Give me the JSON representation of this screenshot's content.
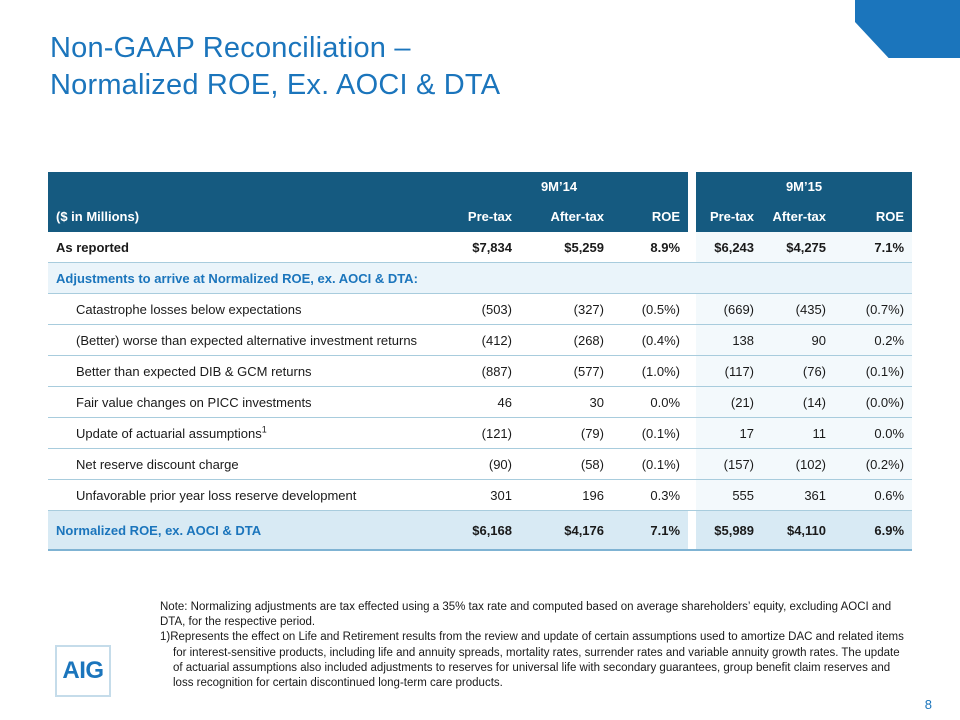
{
  "slide": {
    "title_line1": "Non-GAAP Reconciliation –",
    "title_line2": "Normalized ROE, Ex. AOCI & DTA",
    "page_number": "8",
    "logo": "AIG"
  },
  "table": {
    "period_headers": [
      "9M’14",
      "9M’15"
    ],
    "col_label": "($ in Millions)",
    "col_headers": [
      "Pre-tax",
      "After-tax",
      "ROE",
      "Pre-tax",
      "After-tax",
      "ROE"
    ],
    "as_reported": {
      "label": "As reported",
      "values": [
        "$7,834",
        "$5,259",
        "8.9%",
        "$6,243",
        "$4,275",
        "7.1%"
      ]
    },
    "section_header": "Adjustments to arrive at Normalized ROE, ex. AOCI & DTA:",
    "rows": [
      {
        "label": "Catastrophe losses below expectations",
        "values": [
          "(503)",
          "(327)",
          "(0.5%)",
          "(669)",
          "(435)",
          "(0.7%)"
        ]
      },
      {
        "label": "(Better) worse than expected alternative investment returns",
        "values": [
          "(412)",
          "(268)",
          "(0.4%)",
          "138",
          "90",
          "0.2%"
        ]
      },
      {
        "label": "Better than expected DIB & GCM returns",
        "values": [
          "(887)",
          "(577)",
          "(1.0%)",
          "(117)",
          "(76)",
          "(0.1%)"
        ]
      },
      {
        "label": "Fair value changes on PICC investments",
        "values": [
          "46",
          "30",
          "0.0%",
          "(21)",
          "(14)",
          "(0.0%)"
        ]
      },
      {
        "label": "Update of actuarial assumptions",
        "sup": "1",
        "values": [
          "(121)",
          "(79)",
          "(0.1%)",
          "17",
          "11",
          "0.0%"
        ]
      },
      {
        "label": "Net reserve discount charge",
        "values": [
          "(90)",
          "(58)",
          "(0.1%)",
          "(157)",
          "(102)",
          "(0.2%)"
        ]
      },
      {
        "label": "Unfavorable prior year loss reserve development",
        "values": [
          "301",
          "196",
          "0.3%",
          "555",
          "361",
          "0.6%"
        ]
      }
    ],
    "total": {
      "label": "Normalized ROE, ex. AOCI & DTA",
      "values": [
        "$6,168",
        "$4,176",
        "7.1%",
        "$5,989",
        "$4,110",
        "6.9%"
      ]
    }
  },
  "notes": {
    "note": "Note: Normalizing adjustments are tax effected using a 35% tax rate and computed based on average shareholders’ equity, excluding AOCI and DTA, for the respective period.",
    "footnote1_marker": "1)",
    "footnote1_text": "Represents the effect on Life and Retirement results from the review and update of certain assumptions used to amortize DAC and related items for interest-sensitive products, including life and annuity spreads, mortality rates, surrender rates and variable annuity growth rates. The update of actuarial assumptions also included adjustments to reserves for universal life with secondary guarantees, group benefit claim reserves and loss recognition for certain discontinued long-term care products."
  },
  "colors": {
    "brand": "#1B75BC",
    "header_bg": "#155A80",
    "line": "#A8CCDD",
    "line2": "#7FB3D3",
    "tint_total": "#D8EAF4",
    "tint_section": "#EAF4FA",
    "tint_right": "#F3F9FC",
    "logo_border": "#C5DCEA",
    "text": "#1A1A1A"
  }
}
